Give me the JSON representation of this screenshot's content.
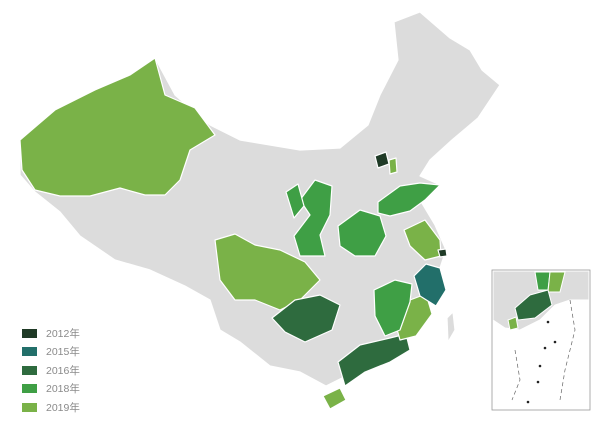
{
  "colors": {
    "base": "#dcdcdc",
    "border": "#ffffff",
    "y2012": "#1f3a26",
    "y2015": "#226f6a",
    "y2016": "#2e6b3e",
    "y2018": "#3f9f45",
    "y2019": "#7ab248"
  },
  "legend": [
    {
      "label": "2012年",
      "color": "#1f3a26"
    },
    {
      "label": "2015年",
      "color": "#226f6a"
    },
    {
      "label": "2016年",
      "color": "#2e6b3e"
    },
    {
      "label": "2018年",
      "color": "#3f9f45"
    },
    {
      "label": "2019年",
      "color": "#7ab248"
    }
  ]
}
